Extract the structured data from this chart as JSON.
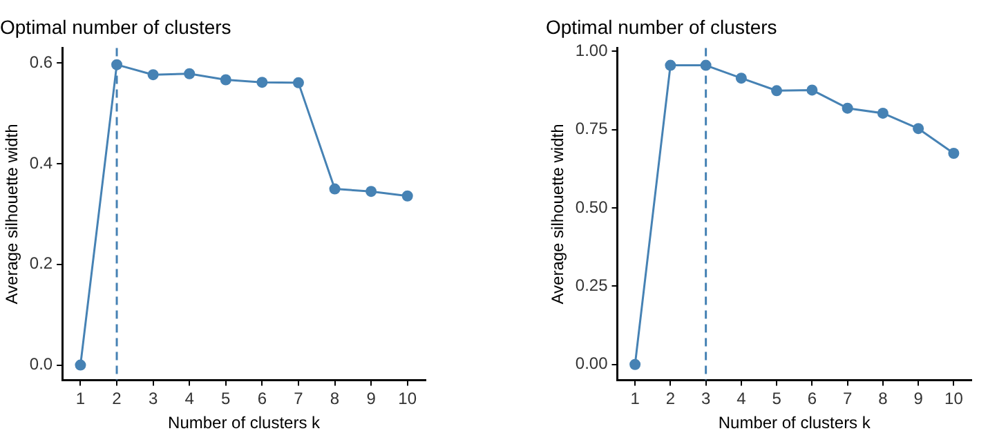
{
  "chart_data": [
    {
      "type": "line",
      "title": "Optimal number of clusters",
      "xlabel": "Number of clusters k",
      "ylabel": "Average silhouette width",
      "categories": [
        "1",
        "2",
        "3",
        "4",
        "5",
        "6",
        "7",
        "8",
        "9",
        "10"
      ],
      "series": [
        {
          "color": "#4682b4",
          "values": [
            0,
            0.597,
            0.577,
            0.579,
            0.567,
            0.562,
            0.561,
            0.35,
            0.345,
            0.336
          ]
        }
      ],
      "ylim": [
        -0.03,
        0.63
      ],
      "yticks": [
        {
          "value": 0,
          "label": "0.0"
        },
        {
          "value": 0.2,
          "label": "0.2"
        },
        {
          "value": 0.4,
          "label": "0.4"
        },
        {
          "value": 0.6,
          "label": "0.6"
        }
      ],
      "ref_lines": [
        {
          "axis": "x",
          "value": "2",
          "color": "#4682b4",
          "line_style": "dashed"
        }
      ],
      "grid": false,
      "legend": false,
      "marker": "circle",
      "line_style": "solid"
    },
    {
      "type": "line",
      "title": "Optimal number of clusters",
      "xlabel": "Number of clusters k",
      "ylabel": "Average silhouette width",
      "categories": [
        "1",
        "2",
        "3",
        "4",
        "5",
        "6",
        "7",
        "8",
        "9",
        "10"
      ],
      "series": [
        {
          "color": "#4682b4",
          "values": [
            0,
            0.955,
            0.955,
            0.914,
            0.874,
            0.876,
            0.818,
            0.802,
            0.753,
            0.674
          ]
        }
      ],
      "ylim": [
        -0.05,
        1.01
      ],
      "yticks": [
        {
          "value": 0,
          "label": "0.00"
        },
        {
          "value": 0.25,
          "label": "0.25"
        },
        {
          "value": 0.5,
          "label": "0.50"
        },
        {
          "value": 0.75,
          "label": "0.75"
        },
        {
          "value": 1,
          "label": "1.00"
        }
      ],
      "ref_lines": [
        {
          "axis": "x",
          "value": "3",
          "color": "#4682b4",
          "line_style": "dashed"
        }
      ],
      "grid": false,
      "legend": false,
      "marker": "circle",
      "line_style": "solid"
    }
  ]
}
